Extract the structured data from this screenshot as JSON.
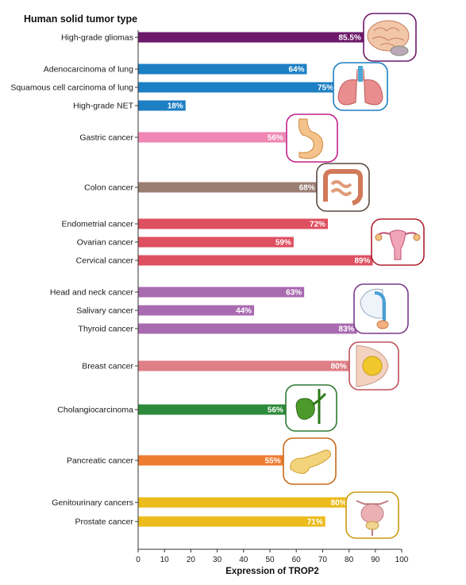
{
  "chart_data": {
    "type": "bar",
    "orientation": "horizontal",
    "title": "Human solid tumor type",
    "xlabel": "Expression of TROP2",
    "ylabel": "",
    "xlim": [
      0,
      100
    ],
    "xticks": [
      "0",
      "10",
      "20",
      "30",
      "40",
      "50",
      "60",
      "70",
      "80",
      "90",
      "100"
    ],
    "grid": false,
    "categories": [
      {
        "label": "High-grade gliomas",
        "value": 85.5,
        "value_label": "85.5%",
        "color": "#6d1a6b",
        "group": 0
      },
      {
        "label": "Adenocarcinoma of lung",
        "value": 64,
        "value_label": "64%",
        "color": "#1d7fc4",
        "group": 1
      },
      {
        "label": "Squamous cell carcinoma of lung",
        "value": 75,
        "value_label": "75%",
        "color": "#1d7fc4",
        "group": 1
      },
      {
        "label": "High-grade NET",
        "value": 18,
        "value_label": "18%",
        "color": "#1d7fc4",
        "group": 1
      },
      {
        "label": "Gastric cancer",
        "value": 56,
        "value_label": "56%",
        "color": "#ef86b4",
        "group": 2
      },
      {
        "label": "Colon cancer",
        "value": 68,
        "value_label": "68%",
        "color": "#9b7e72",
        "group": 3
      },
      {
        "label": "Endometrial cancer",
        "value": 72,
        "value_label": "72%",
        "color": "#de4f5f",
        "group": 4
      },
      {
        "label": "Ovarian cancer",
        "value": 59,
        "value_label": "59%",
        "color": "#de4f5f",
        "group": 4
      },
      {
        "label": "Cervical cancer",
        "value": 89,
        "value_label": "89%",
        "color": "#de4f5f",
        "group": 4
      },
      {
        "label": "Head and neck cancer",
        "value": 63,
        "value_label": "63%",
        "color": "#a96bb0",
        "group": 5
      },
      {
        "label": "Salivary cancer",
        "value": 44,
        "value_label": "44%",
        "color": "#a96bb0",
        "group": 5
      },
      {
        "label": "Thyroid cancer",
        "value": 83,
        "value_label": "83%",
        "color": "#a96bb0",
        "group": 5
      },
      {
        "label": "Breast cancer",
        "value": 80,
        "value_label": "80%",
        "color": "#df7e86",
        "group": 6
      },
      {
        "label": "Cholangiocarcinoma",
        "value": 56,
        "value_label": "56%",
        "color": "#2d8a3a",
        "group": 7
      },
      {
        "label": "Pancreatic cancer",
        "value": 55,
        "value_label": "55%",
        "color": "#ee7c33",
        "group": 8
      },
      {
        "label": "Genitourinary cancers",
        "value": 80,
        "value_label": "80%",
        "color": "#ecbb1c",
        "group": 9
      },
      {
        "label": "Prostate cancer",
        "value": 71,
        "value_label": "71%",
        "color": "#ecbb1c",
        "group": 9
      }
    ],
    "organ_icons": [
      {
        "name": "brain-icon",
        "group": 0,
        "border": "#6d1a6b"
      },
      {
        "name": "lungs-icon",
        "group": 1,
        "border": "#1d7fc4"
      },
      {
        "name": "stomach-icon",
        "group": 2,
        "border": "#c2208a"
      },
      {
        "name": "colon-icon",
        "group": 3,
        "border": "#5a4a42"
      },
      {
        "name": "uterus-icon",
        "group": 4,
        "border": "#b02030"
      },
      {
        "name": "throat-icon",
        "group": 5,
        "border": "#7a3a8a"
      },
      {
        "name": "breast-icon",
        "group": 6,
        "border": "#c0505a"
      },
      {
        "name": "gallbladder-icon",
        "group": 7,
        "border": "#2d7a33"
      },
      {
        "name": "pancreas-icon",
        "group": 8,
        "border": "#c86a1a"
      },
      {
        "name": "bladder-prostate-icon",
        "group": 9,
        "border": "#c89a10"
      }
    ]
  }
}
